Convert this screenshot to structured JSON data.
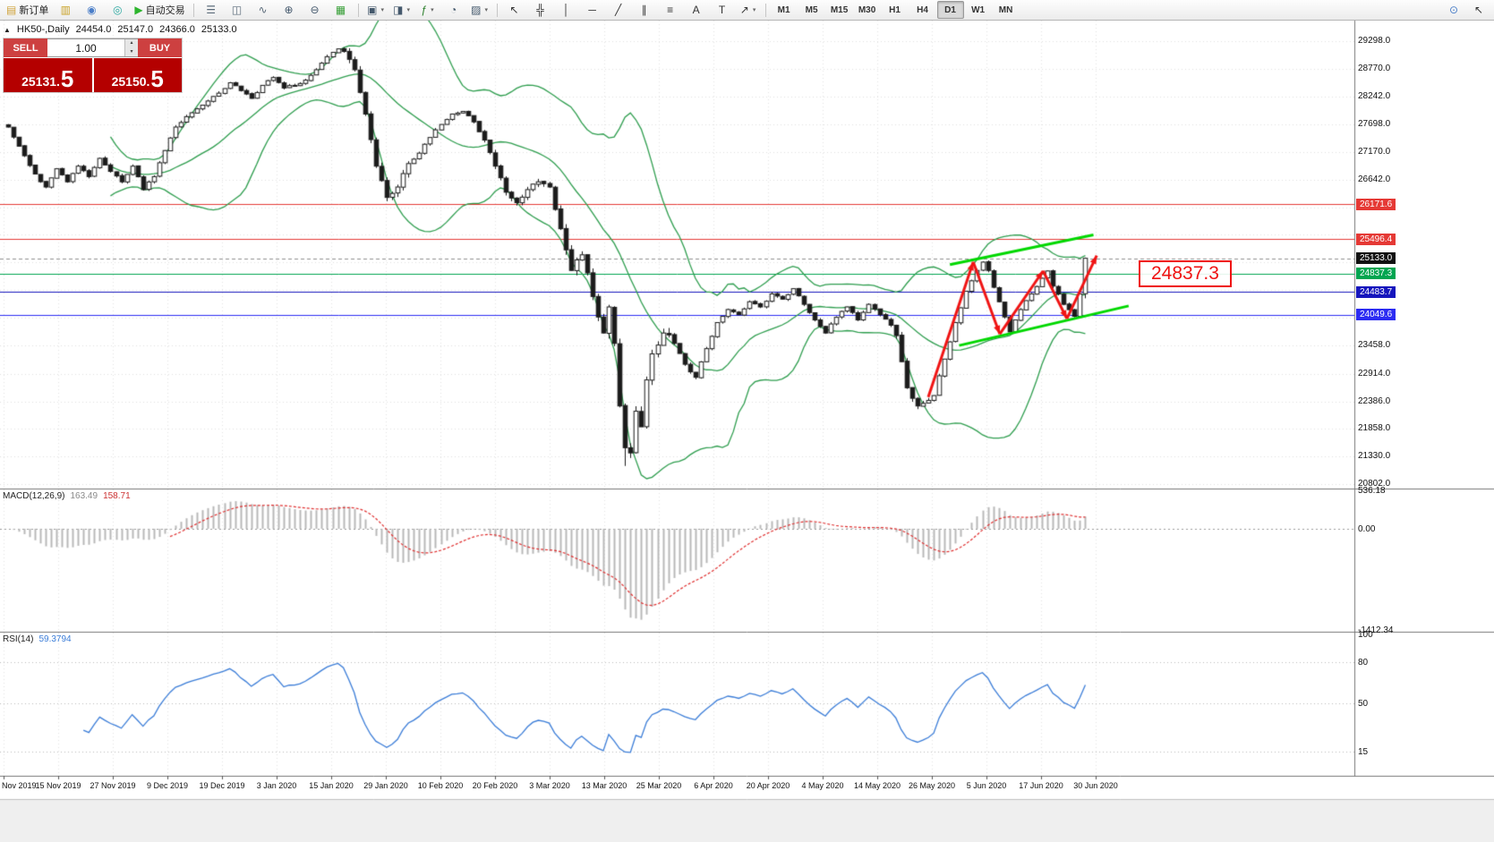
{
  "chart_header": {
    "marker": "▲",
    "title": "HK50-,Daily",
    "open": "24454.0",
    "high": "25147.0",
    "low": "24366.0",
    "close": "25133.0"
  },
  "one_click": {
    "sell_label": "SELL",
    "buy_label": "BUY",
    "lot": "1.00",
    "bid": "25131.5",
    "ask": "25150.5"
  },
  "toolbar": {
    "groups": [
      {
        "items": [
          {
            "name": "new-order-button",
            "glyph": "▤",
            "glyph_color": "#d1a33c",
            "label": "新订单"
          },
          {
            "name": "chart-profiles-icon",
            "glyph": "▥",
            "glyph_color": "#c9a227"
          },
          {
            "name": "market-watch-icon",
            "glyph": "◉",
            "glyph_color": "#4a7ec8"
          },
          {
            "name": "data-window-icon",
            "glyph": "◎",
            "glyph_color": "#2aa8a0"
          },
          {
            "name": "autotrading-button",
            "glyph": "▶",
            "glyph_color": "#2db52d",
            "label": "自动交易"
          }
        ]
      },
      {
        "items": [
          {
            "name": "bar-chart-icon",
            "glyph": "☰",
            "glyph_color": "#5b6b7a"
          },
          {
            "name": "candlestick-chart-icon",
            "glyph": "◫",
            "glyph_color": "#5b6b7a"
          },
          {
            "name": "line-chart-icon",
            "glyph": "∿",
            "glyph_color": "#5b6b7a"
          },
          {
            "name": "zoom-in-icon",
            "glyph": "⊕",
            "glyph_color": "#44586c"
          },
          {
            "name": "zoom-out-icon",
            "glyph": "⊖",
            "glyph_color": "#44586c"
          },
          {
            "name": "tile-windows-icon",
            "glyph": "▦",
            "glyph_color": "#3aa03a"
          }
        ]
      },
      {
        "items": [
          {
            "name": "new-chart-icon",
            "glyph": "▣",
            "glyph_color": "#44586c",
            "dropdown": true
          },
          {
            "name": "profiles-icon",
            "glyph": "◨",
            "glyph_color": "#44586c",
            "dropdown": true
          },
          {
            "name": "indicators-icon",
            "glyph": "ƒ",
            "glyph_color": "#2a7e2a",
            "dropdown": true
          },
          {
            "name": "cycles-icon",
            "glyph": "◔",
            "glyph_color": "#44586c"
          },
          {
            "name": "templates-icon",
            "glyph": "▨",
            "glyph_color": "#44586c",
            "dropdown": true
          }
        ]
      },
      {
        "items": [
          {
            "name": "cursor-icon",
            "glyph": "↖",
            "glyph_color": "#333333"
          },
          {
            "name": "crosshair-icon",
            "glyph": "╬",
            "glyph_color": "#333333"
          },
          {
            "name": "vertical-line-icon",
            "glyph": "│",
            "glyph_color": "#333333"
          },
          {
            "name": "horizontal-line-icon",
            "glyph": "─",
            "glyph_color": "#333333"
          },
          {
            "name": "trendline-icon",
            "glyph": "╱",
            "glyph_color": "#333333"
          },
          {
            "name": "equidistant-channel-icon",
            "glyph": "∥",
            "glyph_color": "#333333"
          },
          {
            "name": "fibonacci-icon",
            "glyph": "≡",
            "glyph_color": "#333333"
          },
          {
            "name": "text-icon",
            "glyph": "A",
            "glyph_color": "#333333"
          },
          {
            "name": "text-label-icon",
            "glyph": "T",
            "glyph_color": "#333333"
          },
          {
            "name": "arrows-icon",
            "glyph": "↗",
            "glyph_color": "#333333",
            "dropdown": true
          }
        ]
      },
      {
        "timeframes": true,
        "items": [
          {
            "name": "timeframe-m1-button",
            "label": "M1"
          },
          {
            "name": "timeframe-m5-button",
            "label": "M5"
          },
          {
            "name": "timeframe-m15-button",
            "label": "M15"
          },
          {
            "name": "timeframe-m30-button",
            "label": "M30"
          },
          {
            "name": "timeframe-h1-button",
            "label": "H1"
          },
          {
            "name": "timeframe-h4-button",
            "label": "H4"
          },
          {
            "name": "timeframe-d1-button",
            "label": "D1",
            "active": true
          },
          {
            "name": "timeframe-w1-button",
            "label": "W1"
          },
          {
            "name": "timeframe-mn-button",
            "label": "MN"
          }
        ]
      }
    ],
    "right_items": [
      {
        "name": "search-icon",
        "glyph": "⊙",
        "glyph_color": "#4a7ec8"
      },
      {
        "name": "pointer-icon",
        "glyph": "↖",
        "glyph_color": "#333333"
      }
    ]
  },
  "chart_data": {
    "type": "candlestick",
    "symbol": "HK50-",
    "timeframe": "Daily",
    "ohlc_current": {
      "open": 24454.0,
      "high": 25147.0,
      "low": 24366.0,
      "close": 25133.0
    },
    "ylim": [
      20802,
      29298
    ],
    "candle_count": 200,
    "close_path_anchors": [
      [
        0,
        27650
      ],
      [
        3,
        27100
      ],
      [
        5,
        26750
      ],
      [
        7,
        26500
      ],
      [
        9,
        26850
      ],
      [
        11,
        26600
      ],
      [
        13,
        26900
      ],
      [
        15,
        26700
      ],
      [
        17,
        27050
      ],
      [
        19,
        26800
      ],
      [
        21,
        26600
      ],
      [
        23,
        26900
      ],
      [
        25,
        26450
      ],
      [
        27,
        26700
      ],
      [
        29,
        27200
      ],
      [
        31,
        27650
      ],
      [
        33,
        27850
      ],
      [
        35,
        28000
      ],
      [
        37,
        28150
      ],
      [
        39,
        28300
      ],
      [
        41,
        28500
      ],
      [
        43,
        28350
      ],
      [
        45,
        28200
      ],
      [
        47,
        28450
      ],
      [
        49,
        28600
      ],
      [
        51,
        28400
      ],
      [
        53,
        28450
      ],
      [
        55,
        28550
      ],
      [
        57,
        28750
      ],
      [
        59,
        29000
      ],
      [
        61,
        29150
      ],
      [
        62,
        29100
      ],
      [
        63,
        28950
      ],
      [
        64,
        28750
      ],
      [
        66,
        27900
      ],
      [
        68,
        26900
      ],
      [
        70,
        26300
      ],
      [
        72,
        26500
      ],
      [
        74,
        26950
      ],
      [
        76,
        27150
      ],
      [
        78,
        27450
      ],
      [
        80,
        27700
      ],
      [
        82,
        27900
      ],
      [
        84,
        27950
      ],
      [
        86,
        27750
      ],
      [
        88,
        27400
      ],
      [
        90,
        26900
      ],
      [
        92,
        26400
      ],
      [
        94,
        26200
      ],
      [
        96,
        26450
      ],
      [
        98,
        26600
      ],
      [
        100,
        26500
      ],
      [
        102,
        25700
      ],
      [
        104,
        24900
      ],
      [
        106,
        25200
      ],
      [
        108,
        24400
      ],
      [
        110,
        23700
      ],
      [
        111,
        24200
      ],
      [
        112,
        23500
      ],
      [
        113,
        22300
      ],
      [
        114,
        21500
      ],
      [
        115,
        21400
      ],
      [
        116,
        22200
      ],
      [
        117,
        21900
      ],
      [
        118,
        22800
      ],
      [
        119,
        23300
      ],
      [
        121,
        23700
      ],
      [
        123,
        23500
      ],
      [
        125,
        23100
      ],
      [
        127,
        22850
      ],
      [
        129,
        23400
      ],
      [
        131,
        23900
      ],
      [
        133,
        24150
      ],
      [
        135,
        24050
      ],
      [
        137,
        24300
      ],
      [
        139,
        24200
      ],
      [
        141,
        24450
      ],
      [
        143,
        24350
      ],
      [
        145,
        24550
      ],
      [
        147,
        24250
      ],
      [
        149,
        23950
      ],
      [
        151,
        23700
      ],
      [
        153,
        24000
      ],
      [
        155,
        24200
      ],
      [
        157,
        23950
      ],
      [
        159,
        24250
      ],
      [
        161,
        24050
      ],
      [
        163,
        23850
      ],
      [
        164,
        23650
      ],
      [
        166,
        22650
      ],
      [
        168,
        22300
      ],
      [
        169,
        22350
      ],
      [
        171,
        22500
      ],
      [
        173,
        23200
      ],
      [
        175,
        23900
      ],
      [
        177,
        24500
      ],
      [
        179,
        24900
      ],
      [
        180,
        25060
      ],
      [
        181,
        24900
      ],
      [
        183,
        24300
      ],
      [
        185,
        23720
      ],
      [
        187,
        24150
      ],
      [
        189,
        24450
      ],
      [
        191,
        24750
      ],
      [
        192,
        24890
      ],
      [
        193,
        24600
      ],
      [
        195,
        24250
      ],
      [
        197,
        24020
      ],
      [
        198,
        24450
      ],
      [
        199,
        25133
      ]
    ],
    "bollinger": {
      "period": 20,
      "deviation": 2,
      "color": "#2f9e4f"
    },
    "price_axis_labels": [
      {
        "v": 29298,
        "t": "29298.0"
      },
      {
        "v": 28770,
        "t": "28770.0"
      },
      {
        "v": 28242,
        "t": "28242.0"
      },
      {
        "v": 27698,
        "t": "27698.0"
      },
      {
        "v": 27170,
        "t": "27170.0"
      },
      {
        "v": 26642,
        "t": "26642.0"
      },
      {
        "v": 23458,
        "t": "23458.0"
      },
      {
        "v": 22914,
        "t": "22914.0"
      },
      {
        "v": 22386,
        "t": "22386.0"
      },
      {
        "v": 21858,
        "t": "21858.0"
      },
      {
        "v": 21330,
        "t": "21330.0"
      },
      {
        "v": 20802,
        "t": "20802.0"
      }
    ],
    "grid_extra": [
      26114,
      25586,
      25058,
      24530,
      24002
    ],
    "hlines": [
      {
        "price": 26171.6,
        "label": "26171.6",
        "color": "#e53935",
        "style": "solid"
      },
      {
        "price": 25496.4,
        "label": "25496.4",
        "color": "#e53935",
        "style": "solid"
      },
      {
        "price": 25133.0,
        "label": "25133.0",
        "color": "#111111",
        "style": "dashed",
        "line_color": "#909090"
      },
      {
        "price": 24837.3,
        "label": "24837.3",
        "color": "#00a550",
        "style": "solid"
      },
      {
        "price": 24483.7,
        "label": "24483.7",
        "color": "#1616bd",
        "style": "solid"
      },
      {
        "price": 24049.6,
        "label": "24049.6",
        "color": "#2c2cf2",
        "style": "solid"
      }
    ],
    "annotations": {
      "channel_color": "#00d800",
      "channel": [
        {
          "i1": 174,
          "p1": 25010,
          "i2": 200.5,
          "p2": 25583
        },
        {
          "i1": 175.7,
          "p1": 23460,
          "i2": 207,
          "p2": 24220
        }
      ],
      "zigzag": {
        "color": "#f01414",
        "points": [
          [
            170,
            22470
          ],
          [
            178.3,
            25064
          ],
          [
            183.2,
            23680
          ],
          [
            191.2,
            24891
          ],
          [
            195.6,
            23974
          ],
          [
            201.1,
            25185
          ]
        ]
      },
      "price_note": {
        "text": "24837.3",
        "color": "#ef1212"
      }
    },
    "time_axis": [
      "Nov 2019",
      "15 Nov 2019",
      "27 Nov 2019",
      "9 Dec 2019",
      "19 Dec 2019",
      "3 Jan 2020",
      "15 Jan 2020",
      "29 Jan 2020",
      "10 Feb 2020",
      "20 Feb 2020",
      "3 Mar 2020",
      "13 Mar 2020",
      "25 Mar 2020",
      "6 Apr 2020",
      "20 Apr 2020",
      "4 May 2020",
      "14 May 2020",
      "26 May 2020",
      "5 Jun 2020",
      "17 Jun 2020",
      "30 Jun 2020"
    ],
    "macd": {
      "label": "MACD(12,26,9)",
      "params": [
        12,
        26,
        9
      ],
      "main_value": "163.49",
      "signal_value": "158.71",
      "axis_labels": [
        "536.18",
        "0.00",
        "-1412.34"
      ],
      "hist_color": "#b8b8b8",
      "signal_color": "#e03030"
    },
    "rsi": {
      "label": "RSI(14)",
      "period": 14,
      "value": "59.3794",
      "axis_labels": [
        "100",
        "80",
        "50",
        "15"
      ],
      "levels": [
        80,
        50,
        15
      ],
      "color": "#3b7dd8"
    }
  }
}
